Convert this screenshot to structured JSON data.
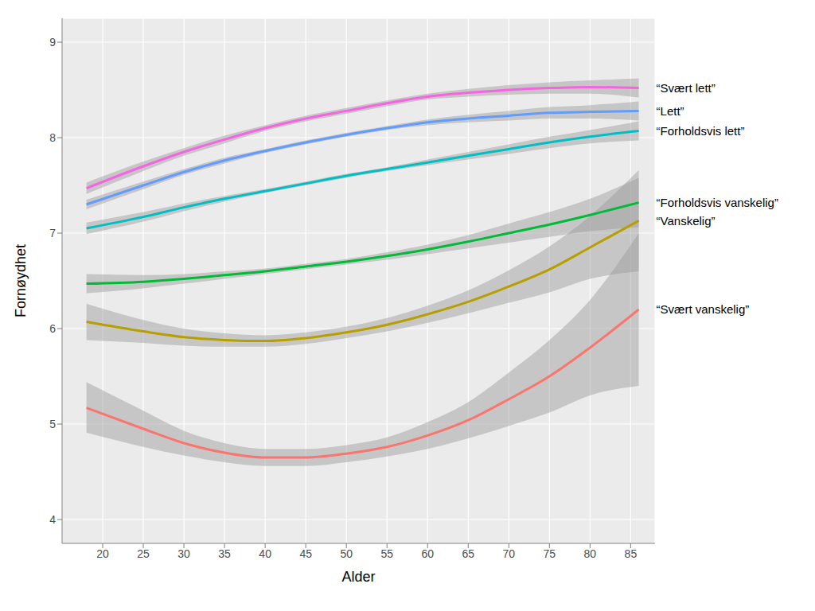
{
  "chart_data": {
    "type": "line",
    "x_label": "Alder",
    "y_label": "Fornøydhet",
    "x": [
      18,
      25,
      30,
      35,
      40,
      45,
      50,
      55,
      60,
      65,
      70,
      75,
      80,
      86
    ],
    "xlim": [
      15,
      88
    ],
    "xticks": [
      20,
      25,
      30,
      35,
      40,
      45,
      50,
      55,
      60,
      65,
      70,
      75,
      80,
      85
    ],
    "ylim": [
      3.75,
      9.25
    ],
    "yticks": [
      4,
      5,
      6,
      7,
      8,
      9
    ],
    "grid": true,
    "series": [
      {
        "name": "“Svært lett”",
        "color": "#F564E3",
        "values": [
          7.47,
          7.7,
          7.85,
          7.98,
          8.1,
          8.2,
          8.28,
          8.36,
          8.43,
          8.47,
          8.5,
          8.52,
          8.53,
          8.52
        ],
        "lower": [
          7.41,
          7.65,
          7.81,
          7.94,
          8.07,
          8.17,
          8.25,
          8.33,
          8.4,
          8.43,
          8.45,
          8.46,
          8.46,
          8.42
        ],
        "upper": [
          7.53,
          7.75,
          7.89,
          8.02,
          8.13,
          8.23,
          8.31,
          8.39,
          8.46,
          8.51,
          8.55,
          8.58,
          8.6,
          8.62
        ]
      },
      {
        "name": "“Lett”",
        "color": "#619CFF",
        "values": [
          7.3,
          7.5,
          7.64,
          7.76,
          7.86,
          7.95,
          8.03,
          8.1,
          8.16,
          8.2,
          8.23,
          8.26,
          8.27,
          8.28
        ],
        "lower": [
          7.25,
          7.46,
          7.61,
          7.73,
          7.84,
          7.93,
          8.01,
          8.08,
          8.13,
          8.16,
          8.18,
          8.2,
          8.2,
          8.18
        ],
        "upper": [
          7.35,
          7.54,
          7.67,
          7.79,
          7.88,
          7.97,
          8.05,
          8.12,
          8.19,
          8.24,
          8.28,
          8.32,
          8.34,
          8.38
        ]
      },
      {
        "name": "“Forholdsvis lett”",
        "color": "#00BFC4",
        "values": [
          7.05,
          7.17,
          7.27,
          7.36,
          7.44,
          7.52,
          7.6,
          7.67,
          7.74,
          7.81,
          7.88,
          7.95,
          8.01,
          8.07
        ],
        "lower": [
          6.99,
          7.12,
          7.23,
          7.33,
          7.42,
          7.5,
          7.58,
          7.65,
          7.71,
          7.77,
          7.83,
          7.89,
          7.94,
          7.97
        ],
        "upper": [
          7.11,
          7.22,
          7.31,
          7.39,
          7.46,
          7.54,
          7.62,
          7.69,
          7.77,
          7.85,
          7.93,
          8.01,
          8.08,
          8.17
        ]
      },
      {
        "name": "“Forholdsvis vanskelig”",
        "color": "#00BA38",
        "values": [
          6.47,
          6.49,
          6.52,
          6.56,
          6.6,
          6.65,
          6.7,
          6.76,
          6.83,
          6.91,
          7.0,
          7.09,
          7.19,
          7.32
        ],
        "lower": [
          6.37,
          6.42,
          6.47,
          6.52,
          6.57,
          6.62,
          6.67,
          6.72,
          6.78,
          6.84,
          6.9,
          6.96,
          7.02,
          7.06
        ],
        "upper": [
          6.57,
          6.56,
          6.57,
          6.6,
          6.63,
          6.68,
          6.73,
          6.8,
          6.88,
          6.98,
          7.1,
          7.22,
          7.36,
          7.58
        ]
      },
      {
        "name": "“Vanskelig”",
        "color": "#B79F00",
        "values": [
          6.07,
          5.97,
          5.91,
          5.88,
          5.87,
          5.9,
          5.96,
          6.04,
          6.15,
          6.28,
          6.44,
          6.62,
          6.85,
          7.13
        ],
        "lower": [
          5.88,
          5.85,
          5.82,
          5.81,
          5.81,
          5.84,
          5.9,
          5.97,
          6.06,
          6.16,
          6.27,
          6.38,
          6.52,
          6.6
        ],
        "upper": [
          6.26,
          6.09,
          6.0,
          5.95,
          5.93,
          5.96,
          6.02,
          6.11,
          6.24,
          6.4,
          6.61,
          6.86,
          7.18,
          7.66
        ]
      },
      {
        "name": "“Svært vanskelig”",
        "color": "#F8766D",
        "values": [
          5.17,
          4.95,
          4.8,
          4.7,
          4.65,
          4.65,
          4.69,
          4.76,
          4.88,
          5.04,
          5.26,
          5.5,
          5.8,
          6.2
        ],
        "lower": [
          4.91,
          4.76,
          4.67,
          4.6,
          4.56,
          4.56,
          4.6,
          4.66,
          4.74,
          4.85,
          4.98,
          5.12,
          5.3,
          5.4
        ],
        "upper": [
          5.44,
          5.14,
          4.93,
          4.8,
          4.74,
          4.74,
          4.78,
          4.86,
          5.02,
          5.23,
          5.54,
          5.88,
          6.3,
          7.0
        ]
      }
    ]
  }
}
